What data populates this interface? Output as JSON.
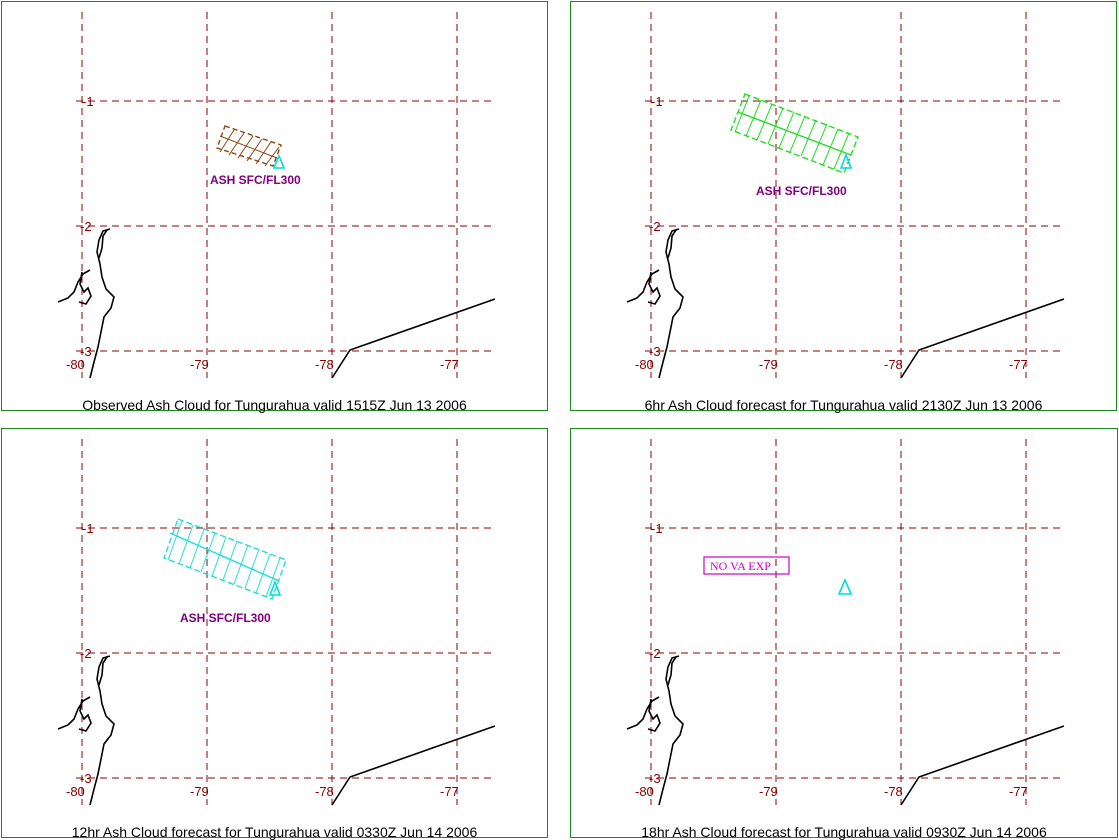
{
  "palette": {
    "border": "#1a8a1a",
    "grid": "#8b0000",
    "coastline": "#000000",
    "volcano": "#00dddd",
    "observed_ash": "#8b4513",
    "forecast_6hr": "#22dd22",
    "forecast_12hr": "#22dddd",
    "ash_label": "#800080",
    "no_va_label": "#cc00cc"
  },
  "axes": {
    "lon_ticks": [
      "-80",
      "-79",
      "-78",
      "-77"
    ],
    "lat_ticks": [
      "-1",
      "-2",
      "-3"
    ]
  },
  "panels": [
    {
      "caption": "Observed Ash Cloud for Tungurahua valid 1515Z Jun 13 2006",
      "ash_label": "ASH SFC/FL300",
      "ash_color": "observed_ash"
    },
    {
      "caption": "6hr Ash Cloud forecast for Tungurahua valid 2130Z Jun 13 2006",
      "ash_label": "ASH SFC/FL300",
      "ash_color": "forecast_6hr"
    },
    {
      "caption": "12hr Ash Cloud forecast for Tungurahua valid 0330Z Jun 14 2006",
      "ash_label": "ASH SFC/FL300",
      "ash_color": "forecast_12hr"
    },
    {
      "caption": "18hr Ash Cloud forecast for Tungurahua valid 0930Z Jun 14 2006",
      "status_label": "NO VA EXP"
    }
  ]
}
